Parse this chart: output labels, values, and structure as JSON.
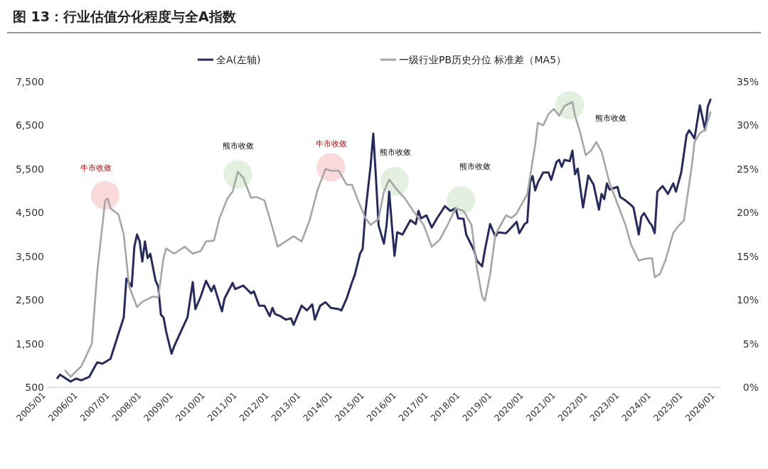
{
  "chart_data": {
    "type": "line",
    "title": "图 13：行业估值分化程度与全A指数",
    "legend": "top",
    "grid": false,
    "xlim": [
      "2005-01",
      "2026-05"
    ],
    "xticks": [
      {
        "value": "2005-01",
        "label": "2005/01"
      },
      {
        "value": "2006-01",
        "label": "2006/01"
      },
      {
        "value": "2007-01",
        "label": "2007/01"
      },
      {
        "value": "2008-01",
        "label": "2008/01"
      },
      {
        "value": "2009-01",
        "label": "2009/01"
      },
      {
        "value": "2010-01",
        "label": "2010/01"
      },
      {
        "value": "2011-01",
        "label": "2011/01"
      },
      {
        "value": "2012-01",
        "label": "2012/01"
      },
      {
        "value": "2013-01",
        "label": "2013/01"
      },
      {
        "value": "2014-01",
        "label": "2014/01"
      },
      {
        "value": "2015-01",
        "label": "2015/01"
      },
      {
        "value": "2016-01",
        "label": "2016/01"
      },
      {
        "value": "2017-01",
        "label": "2017/01"
      },
      {
        "value": "2018-01",
        "label": "2018/01"
      },
      {
        "value": "2019-01",
        "label": "2019/01"
      },
      {
        "value": "2020-01",
        "label": "2020/01"
      },
      {
        "value": "2021-01",
        "label": "2021/01"
      },
      {
        "value": "2022-01",
        "label": "2022/01"
      },
      {
        "value": "2023-01",
        "label": "2023/01"
      },
      {
        "value": "2024-01",
        "label": "2024/01"
      },
      {
        "value": "2025-01",
        "label": "2025/01"
      },
      {
        "value": "2026-01",
        "label": "2026/01"
      }
    ],
    "ylim": [
      500,
      7500
    ],
    "yticks": [
      {
        "value": 500,
        "label": "500"
      },
      {
        "value": 1500,
        "label": "1,500"
      },
      {
        "value": 2500,
        "label": "2,500"
      },
      {
        "value": 3500,
        "label": "3,500"
      },
      {
        "value": 4500,
        "label": "4,500"
      },
      {
        "value": 5500,
        "label": "5,500"
      },
      {
        "value": 6500,
        "label": "6,500"
      },
      {
        "value": 7500,
        "label": "7,500"
      }
    ],
    "y2lim": [
      0,
      35
    ],
    "y2ticks": [
      {
        "value": 0,
        "label": "0%"
      },
      {
        "value": 5,
        "label": "5%"
      },
      {
        "value": 10,
        "label": "10%"
      },
      {
        "value": 15,
        "label": "15%"
      },
      {
        "value": 20,
        "label": "20%"
      },
      {
        "value": 25,
        "label": "25%"
      },
      {
        "value": 30,
        "label": "30%"
      },
      {
        "value": 35,
        "label": "35%"
      }
    ],
    "series": [
      {
        "name": "全A(左轴)",
        "color": "#262a5e",
        "line_style": "solid",
        "x": [
          "2005-06",
          "2005-07",
          "2005-11",
          "2006-01",
          "2006-03",
          "2006-06",
          "2006-09",
          "2006-11",
          "2007-02",
          "2007-05",
          "2007-07",
          "2007-08",
          "2007-10",
          "2007-11",
          "2007-12",
          "2008-01",
          "2008-02",
          "2008-03",
          "2008-04",
          "2008-05",
          "2008-07",
          "2008-08",
          "2008-09",
          "2008-10",
          "2008-11",
          "2009-01",
          "2009-02",
          "2009-05",
          "2009-07",
          "2009-09",
          "2009-10",
          "2009-12",
          "2010-02",
          "2010-04",
          "2010-05",
          "2010-08",
          "2010-09",
          "2010-12",
          "2011-01",
          "2011-04",
          "2011-07",
          "2011-08",
          "2011-10",
          "2011-12",
          "2012-02",
          "2012-03",
          "2012-04",
          "2012-06",
          "2012-08",
          "2012-10",
          "2012-11",
          "2013-02",
          "2013-04",
          "2013-06",
          "2013-07",
          "2013-09",
          "2013-11",
          "2014-01",
          "2014-04",
          "2014-05",
          "2014-07",
          "2014-09",
          "2014-10",
          "2014-12",
          "2015-01",
          "2015-02",
          "2015-04",
          "2015-05",
          "2015-06",
          "2015-07",
          "2015-09",
          "2015-10",
          "2015-11",
          "2015-12",
          "2016-01",
          "2016-02",
          "2016-04",
          "2016-05",
          "2016-07",
          "2016-09",
          "2016-10",
          "2016-11",
          "2017-01",
          "2017-03",
          "2017-05",
          "2017-08",
          "2017-10",
          "2017-12",
          "2018-01",
          "2018-03",
          "2018-04",
          "2018-07",
          "2018-08",
          "2018-10",
          "2018-11",
          "2019-01",
          "2019-03",
          "2019-04",
          "2019-07",
          "2019-09",
          "2019-11",
          "2019-12",
          "2020-02",
          "2020-03",
          "2020-04",
          "2020-05",
          "2020-06",
          "2020-07",
          "2020-09",
          "2020-11",
          "2020-12",
          "2021-02",
          "2021-03",
          "2021-04",
          "2021-05",
          "2021-07",
          "2021-08",
          "2021-09",
          "2021-10",
          "2021-12",
          "2022-02",
          "2022-04",
          "2022-06",
          "2022-07",
          "2022-08",
          "2022-09",
          "2022-10",
          "2023-01",
          "2023-02",
          "2023-04",
          "2023-06",
          "2023-07",
          "2023-09",
          "2023-10",
          "2023-11",
          "2024-01",
          "2024-02",
          "2024-03",
          "2024-04",
          "2024-06",
          "2024-08",
          "2024-10",
          "2024-11",
          "2025-01",
          "2025-03",
          "2025-04",
          "2025-06",
          "2025-08",
          "2025-10",
          "2025-11",
          "2025-12"
        ],
        "values": [
          710,
          790,
          630,
          700,
          660,
          740,
          1070,
          1040,
          1150,
          1720,
          2100,
          2990,
          2810,
          3720,
          4000,
          3840,
          3380,
          3840,
          3460,
          3560,
          2940,
          2810,
          2160,
          2100,
          1770,
          1270,
          1440,
          1840,
          2100,
          2910,
          2290,
          2580,
          2940,
          2700,
          2830,
          2240,
          2540,
          2890,
          2750,
          2830,
          2650,
          2700,
          2370,
          2370,
          2130,
          2320,
          2180,
          2130,
          2050,
          2080,
          1930,
          2370,
          2260,
          2400,
          2050,
          2370,
          2450,
          2320,
          2290,
          2260,
          2540,
          2910,
          3070,
          3560,
          3670,
          4490,
          5580,
          6310,
          5300,
          4210,
          3790,
          4210,
          4980,
          4210,
          3510,
          4050,
          4000,
          4110,
          4330,
          4240,
          4540,
          4370,
          4440,
          4160,
          4370,
          4650,
          4540,
          4600,
          4370,
          4360,
          4000,
          3630,
          3400,
          3270,
          3630,
          4240,
          3950,
          4050,
          4030,
          4160,
          4290,
          4030,
          4240,
          4280,
          5190,
          5340,
          5010,
          5190,
          5420,
          5420,
          5250,
          5660,
          5710,
          5550,
          5710,
          5680,
          5920,
          5380,
          5510,
          4620,
          5350,
          5140,
          4570,
          4930,
          4810,
          5170,
          5030,
          5090,
          4860,
          4780,
          4680,
          4620,
          4000,
          4410,
          4490,
          4280,
          4200,
          4030,
          4980,
          5110,
          4930,
          5170,
          4980,
          5420,
          6280,
          6390,
          6200,
          6960,
          6390,
          6930,
          7090
        ]
      },
      {
        "name": "一级行业PB历史分位 标准差（MA5）",
        "color": "#a6a6a6",
        "axis": "y2",
        "line_style": "solid",
        "x": [
          "2005-09",
          "2005-11",
          "2006-03",
          "2006-07",
          "2006-09",
          "2006-12",
          "2007-01",
          "2007-02",
          "2007-05",
          "2007-07",
          "2007-09",
          "2007-12",
          "2008-02",
          "2008-06",
          "2008-08",
          "2008-10",
          "2008-11",
          "2009-02",
          "2009-06",
          "2009-09",
          "2009-12",
          "2010-02",
          "2010-05",
          "2010-07",
          "2010-10",
          "2010-12",
          "2011-02",
          "2011-04",
          "2011-07",
          "2011-09",
          "2011-12",
          "2012-03",
          "2012-05",
          "2012-11",
          "2013-02",
          "2013-05",
          "2013-08",
          "2013-11",
          "2014-01",
          "2014-04",
          "2014-07",
          "2014-09",
          "2014-11",
          "2015-02",
          "2015-04",
          "2015-07",
          "2015-09",
          "2015-11",
          "2016-02",
          "2016-05",
          "2016-08",
          "2016-12",
          "2017-03",
          "2017-06",
          "2017-09",
          "2017-12",
          "2018-03",
          "2018-06",
          "2018-08",
          "2018-10",
          "2018-11",
          "2019-01",
          "2019-03",
          "2019-07",
          "2019-09",
          "2019-11",
          "2019-12",
          "2020-03",
          "2020-06",
          "2020-07",
          "2020-09",
          "2020-11",
          "2021-01",
          "2021-03",
          "2021-05",
          "2021-08",
          "2021-09",
          "2021-11",
          "2022-01",
          "2022-03",
          "2022-05",
          "2022-07",
          "2022-10",
          "2023-01",
          "2023-04",
          "2023-06",
          "2023-09",
          "2023-11",
          "2024-02",
          "2024-03",
          "2024-05",
          "2024-07",
          "2024-10",
          "2024-12",
          "2025-02",
          "2025-05",
          "2025-06",
          "2025-08",
          "2025-10",
          "2025-12"
        ],
        "values": [
          1.9,
          1.2,
          2.4,
          5.0,
          13.2,
          21.4,
          21.6,
          20.5,
          19.8,
          17.5,
          11.6,
          9.2,
          9.8,
          10.4,
          10.3,
          14.8,
          15.9,
          15.3,
          16.1,
          15.3,
          15.6,
          16.7,
          16.8,
          19.3,
          21.6,
          22.4,
          24.7,
          24.0,
          21.7,
          21.8,
          21.4,
          18.3,
          16.1,
          17.3,
          16.7,
          19.1,
          22.6,
          25.0,
          24.8,
          24.8,
          23.2,
          23.2,
          21.6,
          19.4,
          18.6,
          19.3,
          22.4,
          23.8,
          22.6,
          21.6,
          20.2,
          18.6,
          16.1,
          16.9,
          18.6,
          20.5,
          20.2,
          18.6,
          13.7,
          10.4,
          9.9,
          12.9,
          17.5,
          19.7,
          19.4,
          19.9,
          20.5,
          22.1,
          27.8,
          30.3,
          30.0,
          31.3,
          31.9,
          31.1,
          32.2,
          32.7,
          31.1,
          29.1,
          26.6,
          27.1,
          28.1,
          27.0,
          23.4,
          21.0,
          18.6,
          16.4,
          14.5,
          14.7,
          14.8,
          12.6,
          13.0,
          14.5,
          17.7,
          18.5,
          19.1,
          25.4,
          28.1,
          29.1,
          29.5,
          31.5
        ]
      },
      {
        "type": "scatter",
        "axis": "y2",
        "marker": "circle",
        "x": [
          "2006-12",
          "2011-02",
          "2014-01",
          "2016-01",
          "2018-02",
          "2021-07"
        ],
        "values": [
          22.0,
          24.4,
          25.2,
          23.6,
          21.4,
          32.3
        ],
        "colors": [
          "#f9d9d9",
          "#e3efdf",
          "#f9d9d9",
          "#e3efdf",
          "#e3efdf",
          "#e3efdf"
        ]
      }
    ],
    "annotations": [
      "牛市收敛",
      "熊市收敛",
      "牛市收敛",
      "熊市收敛",
      "熊市收敛",
      "熊市收敛"
    ]
  }
}
